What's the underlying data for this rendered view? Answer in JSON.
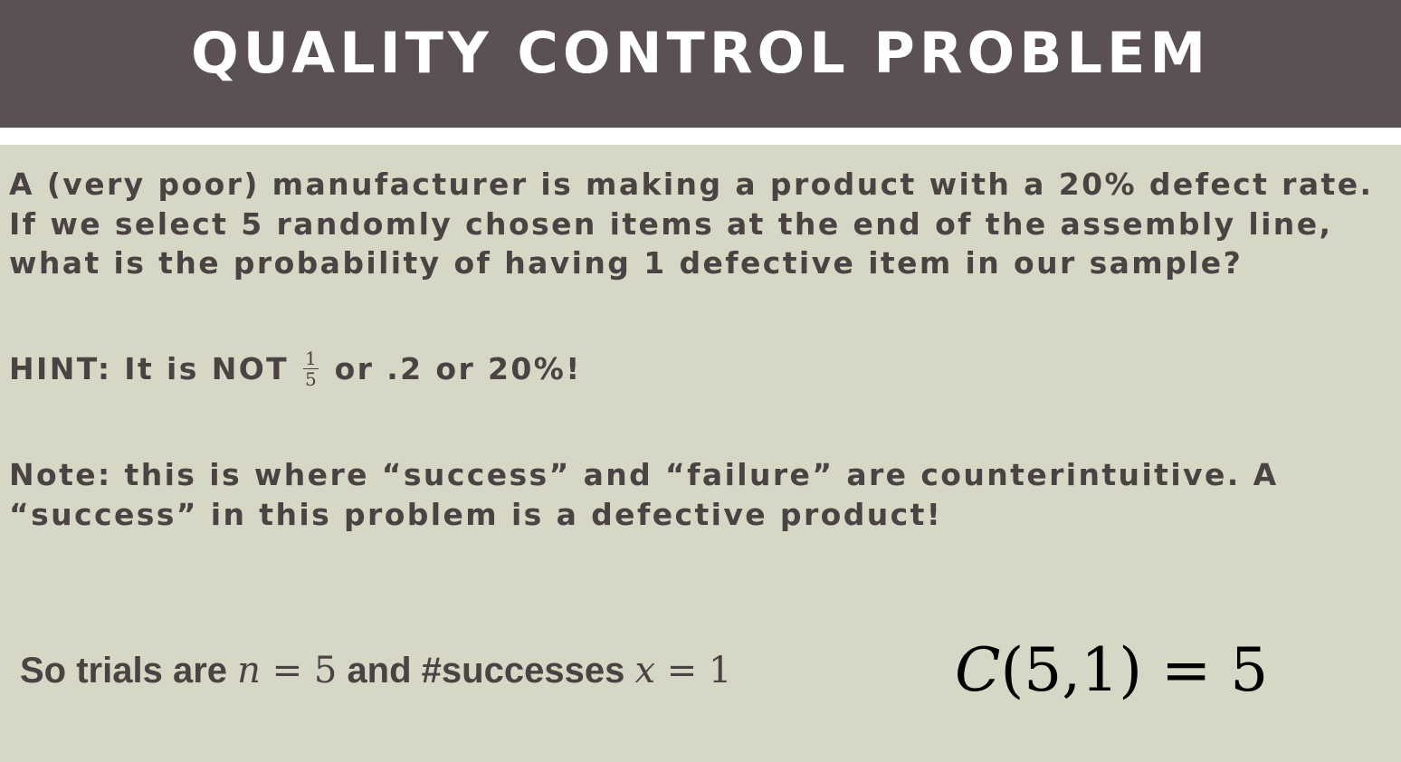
{
  "slide": {
    "title": "QUALITY CONTROL PROBLEM",
    "problem_text": "A (very poor) manufacturer is making a product with a 20% defect rate. If we select 5 randomly chosen items at the end of the assembly line, what is the probability of having 1 defective item in our sample?",
    "hint": {
      "prefix": "HINT: It is NOT",
      "fraction_numerator": "1",
      "fraction_denominator": "5",
      "suffix": "or .2 or 20%!"
    },
    "note_text": "Note: this is where “success” and “failure” are counterintuitive. A “success” in this problem is a defective product!",
    "trials_line": {
      "label_start": "So trials are",
      "n_var": "n",
      "n_eq": " = 5",
      "label_mid": "and #successes",
      "x_var": "x",
      "x_eq": " = 1"
    },
    "combination": {
      "func": "C",
      "args": "(5,1)",
      "result": " = 5"
    }
  }
}
